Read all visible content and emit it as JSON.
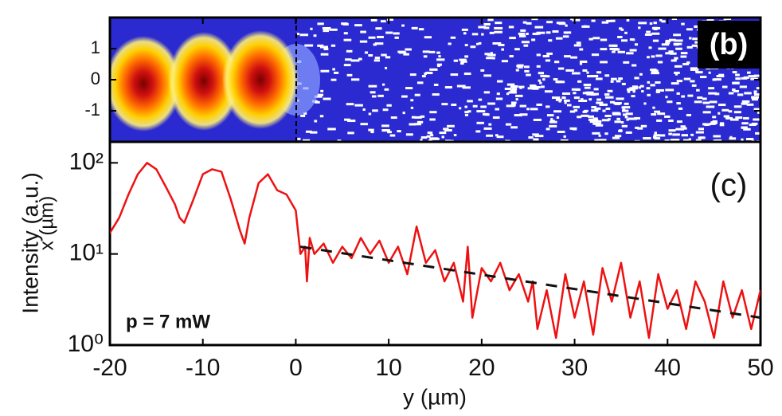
{
  "chart_data": [
    {
      "type": "heatmap",
      "panel_label": "(b)",
      "ylabel": "x (µm)",
      "xlim": [
        -20,
        50
      ],
      "ylim": [
        -2,
        2
      ],
      "yticks": [
        -1,
        0,
        1
      ]
    },
    {
      "type": "line",
      "panel_label": "(c)",
      "annotation": "p = 7 mW",
      "xlabel": "y (µm)",
      "ylabel": "Intensity (a.u.)",
      "log_y": true,
      "xlim": [
        -20,
        50
      ],
      "ylim": [
        1,
        170
      ],
      "xticks": [
        -20,
        -10,
        0,
        10,
        20,
        30,
        40,
        50
      ],
      "yticks": [
        {
          "value": 1,
          "label": "10⁰"
        },
        {
          "value": 10,
          "label": "10¹"
        },
        {
          "value": 100,
          "label": "10²"
        }
      ],
      "series": [
        {
          "color": "#ee1111",
          "style": "solid",
          "x": [
            -20,
            -19,
            -18,
            -17,
            -16,
            -15,
            -14,
            -13,
            -12.5,
            -12,
            -11,
            -10,
            -9,
            -8,
            -7,
            -6,
            -5.5,
            -5,
            -4,
            -3,
            -2,
            -1,
            0,
            0.5,
            1,
            1.2,
            1.5,
            2,
            3,
            4,
            5,
            6,
            7,
            8,
            9,
            10,
            11,
            12,
            13,
            14,
            15,
            16,
            17,
            18,
            18.5,
            19,
            20,
            21,
            22,
            23,
            24,
            25,
            25.5,
            26,
            27,
            28,
            29,
            30,
            31,
            32,
            33,
            34,
            35,
            36,
            37,
            38,
            39,
            40,
            41,
            42,
            43,
            44,
            45,
            46,
            47,
            48,
            49,
            50
          ],
          "values": [
            17,
            25,
            45,
            75,
            100,
            85,
            55,
            35,
            25,
            22,
            40,
            75,
            85,
            80,
            40,
            18,
            13,
            25,
            60,
            75,
            50,
            45,
            30,
            10,
            12,
            5,
            15,
            10,
            13,
            8,
            12,
            9,
            15,
            10,
            14,
            8,
            12,
            6,
            20,
            8,
            11,
            5,
            8,
            3,
            12,
            2,
            7,
            5,
            8,
            4,
            6,
            3,
            5,
            1.5,
            4,
            1.2,
            6,
            2,
            5,
            1.3,
            7,
            3,
            8,
            2,
            5,
            1.2,
            6,
            2.5,
            4,
            1.5,
            5,
            3,
            1.2,
            5,
            2,
            4,
            1.5,
            4
          ]
        },
        {
          "color": "#111111",
          "style": "dashed",
          "x": [
            0.5,
            50
          ],
          "values": [
            12,
            2
          ]
        }
      ]
    }
  ]
}
